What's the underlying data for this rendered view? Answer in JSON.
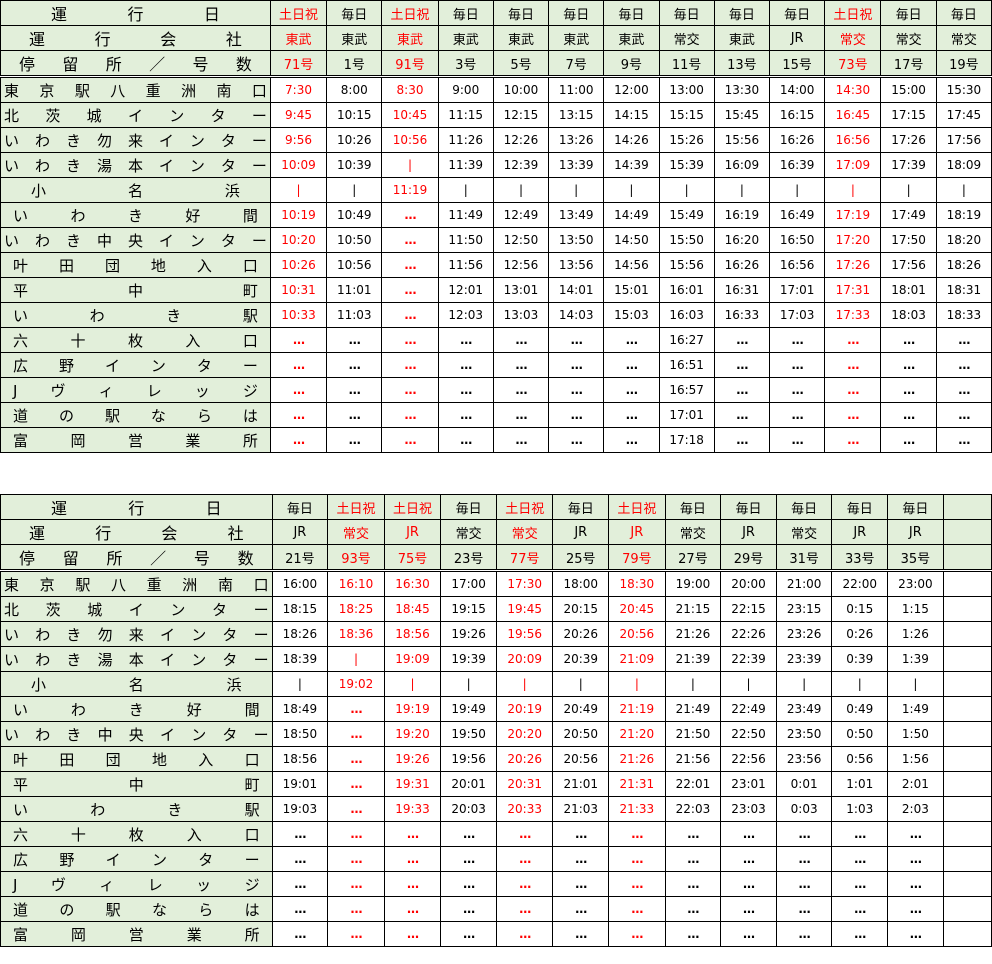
{
  "header_labels": {
    "day": "運　行　日",
    "company": "運　行　会　社",
    "stop": "停留所／号数"
  },
  "stations": [
    "東京駅八重洲南口",
    "北茨城インター",
    "いわき勿来インター",
    "いわき湯本インター",
    "小名浜",
    "いわき好間",
    "いわき中央インター",
    "叶田団地入口",
    "平中町",
    "いわき駅",
    "六十枚入口",
    "広野インター",
    "Jヴィレッジ",
    "道の駅ならは",
    "富岡営業所"
  ],
  "colors": {
    "header_bg": "#e2efda",
    "highlight": "#ff0000"
  },
  "tables": [
    {
      "columns": [
        {
          "day": "土日祝",
          "company": "東武",
          "number": "71号",
          "red": true,
          "times": [
            "7:30",
            "9:45",
            "9:56",
            "10:09",
            "|",
            "10:19",
            "10:20",
            "10:26",
            "10:31",
            "10:33",
            "…",
            "…",
            "…",
            "…",
            "…"
          ]
        },
        {
          "day": "毎日",
          "company": "東武",
          "number": "1号",
          "red": false,
          "times": [
            "8:00",
            "10:15",
            "10:26",
            "10:39",
            "|",
            "10:49",
            "10:50",
            "10:56",
            "11:01",
            "11:03",
            "…",
            "…",
            "…",
            "…",
            "…"
          ]
        },
        {
          "day": "土日祝",
          "company": "東武",
          "number": "91号",
          "red": true,
          "times": [
            "8:30",
            "10:45",
            "10:56",
            "|",
            "11:19",
            "…",
            "…",
            "…",
            "…",
            "…",
            "…",
            "…",
            "…",
            "…",
            "…"
          ]
        },
        {
          "day": "毎日",
          "company": "東武",
          "number": "3号",
          "red": false,
          "times": [
            "9:00",
            "11:15",
            "11:26",
            "11:39",
            "|",
            "11:49",
            "11:50",
            "11:56",
            "12:01",
            "12:03",
            "…",
            "…",
            "…",
            "…",
            "…"
          ]
        },
        {
          "day": "毎日",
          "company": "東武",
          "number": "5号",
          "red": false,
          "times": [
            "10:00",
            "12:15",
            "12:26",
            "12:39",
            "|",
            "12:49",
            "12:50",
            "12:56",
            "13:01",
            "13:03",
            "…",
            "…",
            "…",
            "…",
            "…"
          ]
        },
        {
          "day": "毎日",
          "company": "東武",
          "number": "7号",
          "red": false,
          "times": [
            "11:00",
            "13:15",
            "13:26",
            "13:39",
            "|",
            "13:49",
            "13:50",
            "13:56",
            "14:01",
            "14:03",
            "…",
            "…",
            "…",
            "…",
            "…"
          ]
        },
        {
          "day": "毎日",
          "company": "東武",
          "number": "9号",
          "red": false,
          "times": [
            "12:00",
            "14:15",
            "14:26",
            "14:39",
            "|",
            "14:49",
            "14:50",
            "14:56",
            "15:01",
            "15:03",
            "…",
            "…",
            "…",
            "…",
            "…"
          ]
        },
        {
          "day": "毎日",
          "company": "常交",
          "number": "11号",
          "red": false,
          "times": [
            "13:00",
            "15:15",
            "15:26",
            "15:39",
            "|",
            "15:49",
            "15:50",
            "15:56",
            "16:01",
            "16:03",
            "16:27",
            "16:51",
            "16:57",
            "17:01",
            "17:18"
          ]
        },
        {
          "day": "毎日",
          "company": "東武",
          "number": "13号",
          "red": false,
          "times": [
            "13:30",
            "15:45",
            "15:56",
            "16:09",
            "|",
            "16:19",
            "16:20",
            "16:26",
            "16:31",
            "16:33",
            "…",
            "…",
            "…",
            "…",
            "…"
          ]
        },
        {
          "day": "毎日",
          "company": "JR",
          "number": "15号",
          "red": false,
          "times": [
            "14:00",
            "16:15",
            "16:26",
            "16:39",
            "|",
            "16:49",
            "16:50",
            "16:56",
            "17:01",
            "17:03",
            "…",
            "…",
            "…",
            "…",
            "…"
          ]
        },
        {
          "day": "土日祝",
          "company": "常交",
          "number": "73号",
          "red": true,
          "times": [
            "14:30",
            "16:45",
            "16:56",
            "17:09",
            "|",
            "17:19",
            "17:20",
            "17:26",
            "17:31",
            "17:33",
            "…",
            "…",
            "…",
            "…",
            "…"
          ]
        },
        {
          "day": "毎日",
          "company": "常交",
          "number": "17号",
          "red": false,
          "times": [
            "15:00",
            "17:15",
            "17:26",
            "17:39",
            "|",
            "17:49",
            "17:50",
            "17:56",
            "18:01",
            "18:03",
            "…",
            "…",
            "…",
            "…",
            "…"
          ]
        },
        {
          "day": "毎日",
          "company": "常交",
          "number": "19号",
          "red": false,
          "times": [
            "15:30",
            "17:45",
            "17:56",
            "18:09",
            "|",
            "18:19",
            "18:20",
            "18:26",
            "18:31",
            "18:33",
            "…",
            "…",
            "…",
            "…",
            "…"
          ]
        }
      ]
    },
    {
      "columns": [
        {
          "day": "毎日",
          "company": "JR",
          "number": "21号",
          "red": false,
          "times": [
            "16:00",
            "18:15",
            "18:26",
            "18:39",
            "|",
            "18:49",
            "18:50",
            "18:56",
            "19:01",
            "19:03",
            "…",
            "…",
            "…",
            "…",
            "…"
          ]
        },
        {
          "day": "土日祝",
          "company": "常交",
          "number": "93号",
          "red": true,
          "times": [
            "16:10",
            "18:25",
            "18:36",
            "|",
            "19:02",
            "…",
            "…",
            "…",
            "…",
            "…",
            "…",
            "…",
            "…",
            "…",
            "…"
          ]
        },
        {
          "day": "土日祝",
          "company": "JR",
          "number": "75号",
          "red": true,
          "times": [
            "16:30",
            "18:45",
            "18:56",
            "19:09",
            "|",
            "19:19",
            "19:20",
            "19:26",
            "19:31",
            "19:33",
            "…",
            "…",
            "…",
            "…",
            "…"
          ]
        },
        {
          "day": "毎日",
          "company": "常交",
          "number": "23号",
          "red": false,
          "times": [
            "17:00",
            "19:15",
            "19:26",
            "19:39",
            "|",
            "19:49",
            "19:50",
            "19:56",
            "20:01",
            "20:03",
            "…",
            "…",
            "…",
            "…",
            "…"
          ]
        },
        {
          "day": "土日祝",
          "company": "常交",
          "number": "77号",
          "red": true,
          "times": [
            "17:30",
            "19:45",
            "19:56",
            "20:09",
            "|",
            "20:19",
            "20:20",
            "20:26",
            "20:31",
            "20:33",
            "…",
            "…",
            "…",
            "…",
            "…"
          ]
        },
        {
          "day": "毎日",
          "company": "JR",
          "number": "25号",
          "red": false,
          "times": [
            "18:00",
            "20:15",
            "20:26",
            "20:39",
            "|",
            "20:49",
            "20:50",
            "20:56",
            "21:01",
            "21:03",
            "…",
            "…",
            "…",
            "…",
            "…"
          ]
        },
        {
          "day": "土日祝",
          "company": "JR",
          "number": "79号",
          "red": true,
          "times": [
            "18:30",
            "20:45",
            "20:56",
            "21:09",
            "|",
            "21:19",
            "21:20",
            "21:26",
            "21:31",
            "21:33",
            "…",
            "…",
            "…",
            "…",
            "…"
          ]
        },
        {
          "day": "毎日",
          "company": "常交",
          "number": "27号",
          "red": false,
          "times": [
            "19:00",
            "21:15",
            "21:26",
            "21:39",
            "|",
            "21:49",
            "21:50",
            "21:56",
            "22:01",
            "22:03",
            "…",
            "…",
            "…",
            "…",
            "…"
          ]
        },
        {
          "day": "毎日",
          "company": "JR",
          "number": "29号",
          "red": false,
          "times": [
            "20:00",
            "22:15",
            "22:26",
            "22:39",
            "|",
            "22:49",
            "22:50",
            "22:56",
            "23:01",
            "23:03",
            "…",
            "…",
            "…",
            "…",
            "…"
          ]
        },
        {
          "day": "毎日",
          "company": "常交",
          "number": "31号",
          "red": false,
          "times": [
            "21:00",
            "23:15",
            "23:26",
            "23:39",
            "|",
            "23:49",
            "23:50",
            "23:56",
            "0:01",
            "0:03",
            "…",
            "…",
            "…",
            "…",
            "…"
          ]
        },
        {
          "day": "毎日",
          "company": "JR",
          "number": "33号",
          "red": false,
          "times": [
            "22:00",
            "0:15",
            "0:26",
            "0:39",
            "|",
            "0:49",
            "0:50",
            "0:56",
            "1:01",
            "1:03",
            "…",
            "…",
            "…",
            "…",
            "…"
          ]
        },
        {
          "day": "毎日",
          "company": "JR",
          "number": "35号",
          "red": false,
          "times": [
            "23:00",
            "1:15",
            "1:26",
            "1:39",
            "|",
            "1:49",
            "1:50",
            "1:56",
            "2:01",
            "2:03",
            "…",
            "…",
            "…",
            "…",
            "…"
          ]
        },
        {
          "day": "",
          "company": "",
          "number": "",
          "red": false,
          "times": [
            "",
            "",
            "",
            "",
            "",
            "",
            "",
            "",
            "",
            "",
            "",
            "",
            "",
            "",
            ""
          ]
        }
      ]
    }
  ]
}
